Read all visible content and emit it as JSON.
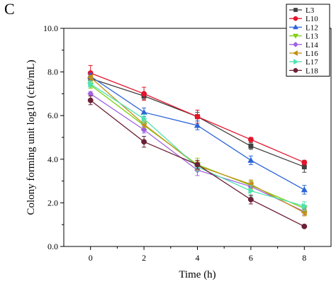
{
  "panel_label": "C",
  "chart_data": {
    "type": "line",
    "title": "",
    "xlabel": "Time (h)",
    "ylabel": "Colony forming unit log10 (cfu/mL)",
    "x": [
      0,
      2,
      4,
      6,
      8
    ],
    "xlim": [
      -1,
      9
    ],
    "ylim": [
      0,
      10
    ],
    "x_ticks": [
      "0",
      "2",
      "4",
      "6",
      "8"
    ],
    "y_ticks": [
      "0.0",
      "2.0",
      "4.0",
      "6.0",
      "8.0",
      "10.0"
    ],
    "grid": false,
    "legend_position": "top-right",
    "error_bars": true,
    "series": [
      {
        "name": "L3",
        "color": "#404040",
        "marker": "square",
        "values": [
          7.7,
          6.9,
          5.95,
          4.6,
          3.65
        ],
        "errors": [
          0.15,
          0.15,
          0.2,
          0.15,
          0.25
        ]
      },
      {
        "name": "L10",
        "color": "#e3152b",
        "marker": "circle",
        "values": [
          7.95,
          7.0,
          5.95,
          4.9,
          3.85
        ],
        "errors": [
          0.35,
          0.3,
          0.3,
          0.1,
          0.1
        ]
      },
      {
        "name": "L12",
        "color": "#2a64d8",
        "marker": "triangle-up",
        "values": [
          7.8,
          6.15,
          5.55,
          3.95,
          2.6
        ],
        "errors": [
          0.15,
          0.2,
          0.2,
          0.2,
          0.2
        ]
      },
      {
        "name": "L13",
        "color": "#7fcf10",
        "marker": "triangle-down",
        "values": [
          7.4,
          5.55,
          3.75,
          2.8,
          1.75
        ],
        "errors": [
          0.15,
          0.15,
          0.3,
          0.2,
          0.15
        ]
      },
      {
        "name": "L14",
        "color": "#a062e0",
        "marker": "diamond",
        "values": [
          7.0,
          5.35,
          3.5,
          2.75,
          1.6
        ],
        "errors": [
          0.1,
          0.15,
          0.25,
          0.2,
          0.15
        ]
      },
      {
        "name": "L16",
        "color": "#c39014",
        "marker": "triangle-left",
        "values": [
          7.75,
          5.6,
          3.7,
          2.85,
          1.55
        ],
        "errors": [
          0.1,
          0.15,
          0.2,
          0.2,
          0.15
        ]
      },
      {
        "name": "L17",
        "color": "#4fe3b2",
        "marker": "triangle-right",
        "values": [
          7.45,
          5.85,
          3.65,
          2.55,
          1.85
        ],
        "errors": [
          0.15,
          0.2,
          0.2,
          0.25,
          0.2
        ]
      },
      {
        "name": "L18",
        "color": "#6b2035",
        "marker": "circle",
        "values": [
          6.7,
          4.8,
          3.75,
          2.15,
          0.92
        ],
        "errors": [
          0.2,
          0.25,
          0.2,
          0.2,
          0.05
        ]
      }
    ]
  }
}
